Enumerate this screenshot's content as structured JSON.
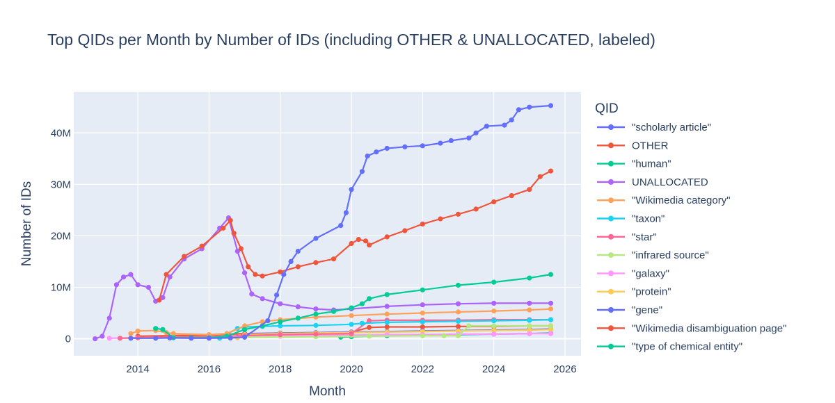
{
  "chart_data": {
    "type": "line",
    "title": "Top QIDs per Month by Number of IDs (including OTHER & UNALLOCATED, labeled)",
    "xlabel": "Month",
    "ylabel": "Number of IDs",
    "xlim": [
      2012.2,
      2026.45
    ],
    "ylim": [
      -3.3,
      48
    ],
    "x_ticks": [
      2014,
      2016,
      2018,
      2020,
      2022,
      2024,
      2026
    ],
    "x_tick_labels": [
      "2014",
      "2016",
      "2018",
      "2020",
      "2022",
      "2024",
      "2026"
    ],
    "y_ticks": [
      0,
      10,
      20,
      30,
      40
    ],
    "y_tick_labels": [
      "0",
      "10M",
      "20M",
      "30M",
      "40M"
    ],
    "y_unit": "millions",
    "grid": true,
    "legend": {
      "title": "QID",
      "position": "right"
    },
    "series": [
      {
        "name": "\"scholarly article\"",
        "color": "#636efa",
        "x": [
          2013.8,
          2014.5,
          2014.9,
          2015.5,
          2016.0,
          2016.6,
          2017.0,
          2017.65,
          2017.9,
          2018.1,
          2018.3,
          2018.5,
          2019.0,
          2019.7,
          2019.85,
          2020.0,
          2020.3,
          2020.45,
          2020.7,
          2021.0,
          2021.5,
          2022.0,
          2022.5,
          2022.8,
          2023.3,
          2023.5,
          2023.8,
          2024.3,
          2024.5,
          2024.7,
          2025.0,
          2025.6
        ],
        "values": [
          0.1,
          0.1,
          0.15,
          0.1,
          0.1,
          0.15,
          0.3,
          3.5,
          8.5,
          12.5,
          15.0,
          17.0,
          19.5,
          22.0,
          24.5,
          29.0,
          32.5,
          35.5,
          36.3,
          37.0,
          37.3,
          37.5,
          38.0,
          38.5,
          39.0,
          40.0,
          41.3,
          41.5,
          42.5,
          44.5,
          45.0,
          45.3
        ]
      },
      {
        "name": "OTHER",
        "color": "#ef553b",
        "x": [
          2014.6,
          2014.8,
          2015.3,
          2015.8,
          2016.4,
          2016.6,
          2016.7,
          2016.9,
          2017.1,
          2017.3,
          2017.5,
          2018.0,
          2018.5,
          2019.0,
          2019.5,
          2020.0,
          2020.2,
          2020.4,
          2020.5,
          2021.0,
          2021.5,
          2022.0,
          2022.5,
          2023.0,
          2023.5,
          2024.0,
          2024.5,
          2025.0,
          2025.3,
          2025.6
        ],
        "values": [
          7.5,
          12.5,
          16.0,
          18.0,
          21.5,
          23.0,
          20.5,
          17.5,
          14.0,
          12.5,
          12.2,
          13.0,
          14.0,
          14.8,
          15.5,
          18.5,
          19.3,
          19.0,
          18.2,
          19.8,
          21.0,
          22.3,
          23.3,
          24.2,
          25.2,
          26.6,
          27.8,
          29.0,
          31.5,
          32.6
        ]
      },
      {
        "name": "\"human\"",
        "color": "#00cc96",
        "x": [
          2014.5,
          2014.7,
          2015.0,
          2015.5,
          2016.0,
          2016.5,
          2017.0,
          2017.5,
          2018.0,
          2018.5,
          2019.0,
          2019.5,
          2020.0,
          2020.3,
          2020.5,
          2021.0,
          2022.0,
          2023.0,
          2024.0,
          2025.0,
          2025.6
        ],
        "values": [
          2.0,
          1.8,
          0.2,
          0.2,
          0.2,
          0.5,
          1.8,
          2.5,
          3.3,
          4.0,
          4.8,
          5.3,
          6.0,
          6.8,
          7.8,
          8.6,
          9.5,
          10.4,
          11.0,
          11.8,
          12.5
        ]
      },
      {
        "name": "UNALLOCATED",
        "color": "#ab63fa",
        "x": [
          2012.8,
          2013.0,
          2013.2,
          2013.4,
          2013.6,
          2013.8,
          2014.0,
          2014.3,
          2014.5,
          2014.7,
          2014.9,
          2015.3,
          2015.8,
          2016.3,
          2016.55,
          2016.8,
          2017.0,
          2017.2,
          2017.5,
          2018.0,
          2018.5,
          2019.0,
          2019.5,
          2020.0,
          2021.0,
          2022.0,
          2023.0,
          2024.0,
          2025.0,
          2025.6
        ],
        "values": [
          0.0,
          0.5,
          4.0,
          10.5,
          12.0,
          12.5,
          10.5,
          10.0,
          7.3,
          8.0,
          12.0,
          15.5,
          17.5,
          21.5,
          23.5,
          17.0,
          12.8,
          8.7,
          7.8,
          6.8,
          6.2,
          5.8,
          5.6,
          5.8,
          6.3,
          6.6,
          6.8,
          6.9,
          6.9,
          6.9
        ]
      },
      {
        "name": "\"Wikimedia category\"",
        "color": "#ffa15a",
        "x": [
          2013.8,
          2014.0,
          2014.5,
          2014.8,
          2015.0,
          2016.0,
          2016.5,
          2017.0,
          2017.5,
          2018.0,
          2019.0,
          2020.0,
          2021.0,
          2022.0,
          2023.0,
          2024.0,
          2025.0,
          2025.6
        ],
        "values": [
          1.0,
          1.5,
          1.6,
          1.2,
          1.0,
          0.8,
          1.0,
          2.5,
          3.3,
          3.7,
          4.2,
          4.5,
          4.8,
          5.0,
          5.2,
          5.4,
          5.6,
          5.8
        ]
      },
      {
        "name": "\"taxon\"",
        "color": "#19d3f3",
        "x": [
          2016.3,
          2016.8,
          2017.0,
          2017.5,
          2018.0,
          2019.0,
          2020.0,
          2020.3,
          2021.0,
          2022.0,
          2023.0,
          2024.0,
          2025.0,
          2025.6
        ],
        "values": [
          0.1,
          2.0,
          2.3,
          2.4,
          2.5,
          2.6,
          2.8,
          3.0,
          3.2,
          3.3,
          3.4,
          3.5,
          3.6,
          3.7
        ]
      },
      {
        "name": "\"star\"",
        "color": "#ff6692",
        "x": [
          2013.5,
          2014.0,
          2015.0,
          2016.0,
          2017.0,
          2018.0,
          2019.0,
          2020.0,
          2020.5,
          2021.0,
          2022.0,
          2023.0,
          2024.0,
          2025.0,
          2025.6
        ],
        "values": [
          0.1,
          0.2,
          0.3,
          0.4,
          0.6,
          0.8,
          0.9,
          1.0,
          3.5,
          3.6,
          3.6,
          3.6,
          3.7,
          3.7,
          3.7
        ]
      },
      {
        "name": "\"infrared source\"",
        "color": "#b6e880",
        "x": [
          2013.5,
          2015.0,
          2017.0,
          2019.0,
          2020.5,
          2022.0,
          2022.6,
          2023.0,
          2023.3,
          2024.0,
          2025.0,
          2025.6
        ],
        "values": [
          0.1,
          0.2,
          0.3,
          0.4,
          0.5,
          0.6,
          0.6,
          0.6,
          2.5,
          2.5,
          2.5,
          2.5
        ]
      },
      {
        "name": "\"galaxy\"",
        "color": "#ff97ff",
        "x": [
          2013.2,
          2014.0,
          2015.0,
          2016.0,
          2017.0,
          2018.0,
          2019.0,
          2020.0,
          2021.0,
          2022.0,
          2023.0,
          2024.0,
          2025.0,
          2025.6
        ],
        "values": [
          0.1,
          0.2,
          0.2,
          0.3,
          0.4,
          0.5,
          0.6,
          0.7,
          0.8,
          0.8,
          0.9,
          0.9,
          1.0,
          1.0
        ]
      },
      {
        "name": "\"protein\"",
        "color": "#fecb52",
        "x": [
          2016.8,
          2017.0,
          2018.0,
          2019.0,
          2020.0,
          2021.0,
          2022.0,
          2023.0,
          2024.0,
          2025.0,
          2025.6
        ],
        "values": [
          0.2,
          0.8,
          1.0,
          1.1,
          1.2,
          1.3,
          1.4,
          1.5,
          1.6,
          1.7,
          1.8
        ]
      },
      {
        "name": "\"gene\"",
        "color": "#636efa",
        "x": [
          2016.8,
          2017.0,
          2018.0,
          2019.0,
          2020.0,
          2021.0,
          2022.0,
          2023.0,
          2024.0,
          2025.0,
          2025.6
        ],
        "values": [
          0.3,
          0.9,
          1.1,
          1.2,
          1.3,
          1.4,
          1.5,
          1.6,
          1.7,
          1.8,
          1.9
        ]
      },
      {
        "name": "\"Wikimedia disambiguation page\"",
        "color": "#ef553b",
        "x": [
          2014.0,
          2015.0,
          2016.0,
          2017.0,
          2018.0,
          2019.0,
          2020.0,
          2020.5,
          2021.0,
          2022.0,
          2023.0,
          2024.0,
          2025.0,
          2025.6
        ],
        "values": [
          0.5,
          0.6,
          0.7,
          1.0,
          1.1,
          1.2,
          1.3,
          2.2,
          2.3,
          2.3,
          2.4,
          2.4,
          2.5,
          2.5
        ]
      },
      {
        "name": "\"type of chemical entity\"",
        "color": "#00cc96",
        "x": [
          2019.7,
          2020.0,
          2021.0,
          2022.0,
          2023.0,
          2024.0,
          2025.0,
          2025.6
        ],
        "values": [
          0.3,
          0.4,
          0.6,
          0.7,
          0.8,
          0.9,
          1.0,
          1.1
        ]
      }
    ]
  }
}
